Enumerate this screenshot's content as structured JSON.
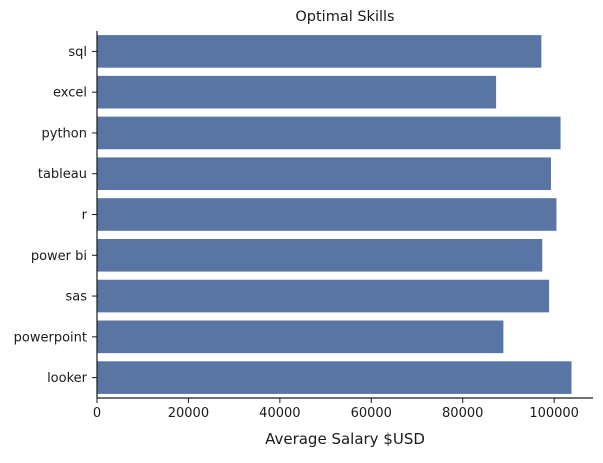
{
  "chart_data": {
    "type": "bar",
    "orientation": "horizontal",
    "title": "Optimal Skills",
    "xlabel": "Average Salary $USD",
    "ylabel": "",
    "categories": [
      "sql",
      "excel",
      "python",
      "tableau",
      "r",
      "power bi",
      "sas",
      "powerpoint",
      "looker"
    ],
    "values": [
      97200,
      87300,
      101400,
      99300,
      100500,
      97400,
      98900,
      88900,
      103800
    ],
    "xlim": [
      0,
      108500
    ],
    "xticks": [
      0,
      20000,
      40000,
      60000,
      80000,
      100000
    ],
    "xtick_labels": [
      "0",
      "20000",
      "40000",
      "60000",
      "80000",
      "100000"
    ],
    "bar_color": "#5875a4",
    "grid": false,
    "legend": "none"
  }
}
